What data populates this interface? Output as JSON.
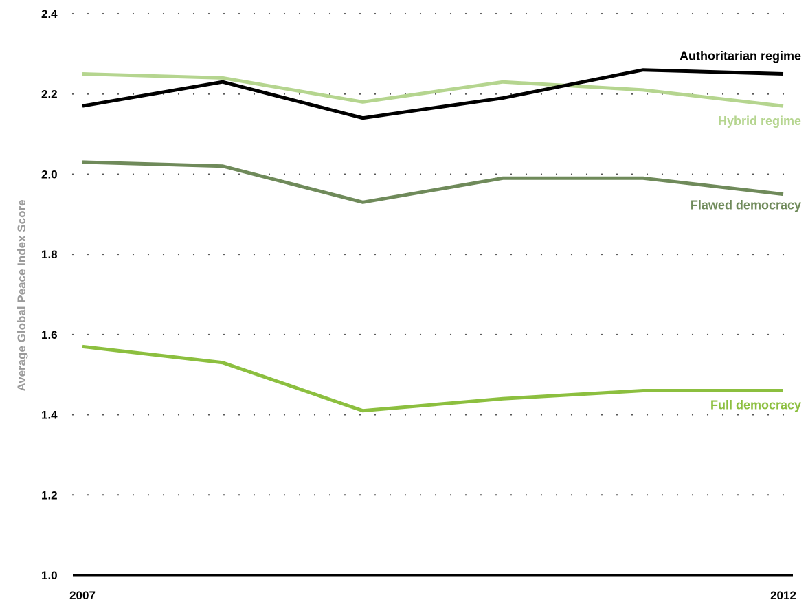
{
  "chart_data": {
    "type": "line",
    "xlabel": "",
    "ylabel": "Average Global Peace Index Score",
    "x": [
      2007,
      2008,
      2009,
      2010,
      2011,
      2012
    ],
    "x_tick_labels": [
      "2007",
      "2012"
    ],
    "ylim": [
      1.0,
      2.4
    ],
    "yticks": [
      "1.0",
      "1.2",
      "1.4",
      "1.6",
      "1.8",
      "2.0",
      "2.2",
      "2.4"
    ],
    "grid": "dotted horizontal",
    "legend": "inline labels at right end of lines",
    "series": [
      {
        "name": "Authoritarian regime",
        "color": "#000000",
        "values": [
          2.17,
          2.23,
          2.14,
          2.19,
          2.26,
          2.25
        ]
      },
      {
        "name": "Hybrid regime",
        "color": "#b5d58f",
        "values": [
          2.25,
          2.24,
          2.18,
          2.23,
          2.21,
          2.17
        ]
      },
      {
        "name": "Flawed democracy",
        "color": "#6f8a5a",
        "values": [
          2.03,
          2.02,
          1.93,
          1.99,
          1.99,
          1.95
        ]
      },
      {
        "name": "Full democracy",
        "color": "#8cbf3f",
        "values": [
          1.57,
          1.53,
          1.41,
          1.44,
          1.46,
          1.46
        ]
      }
    ]
  }
}
